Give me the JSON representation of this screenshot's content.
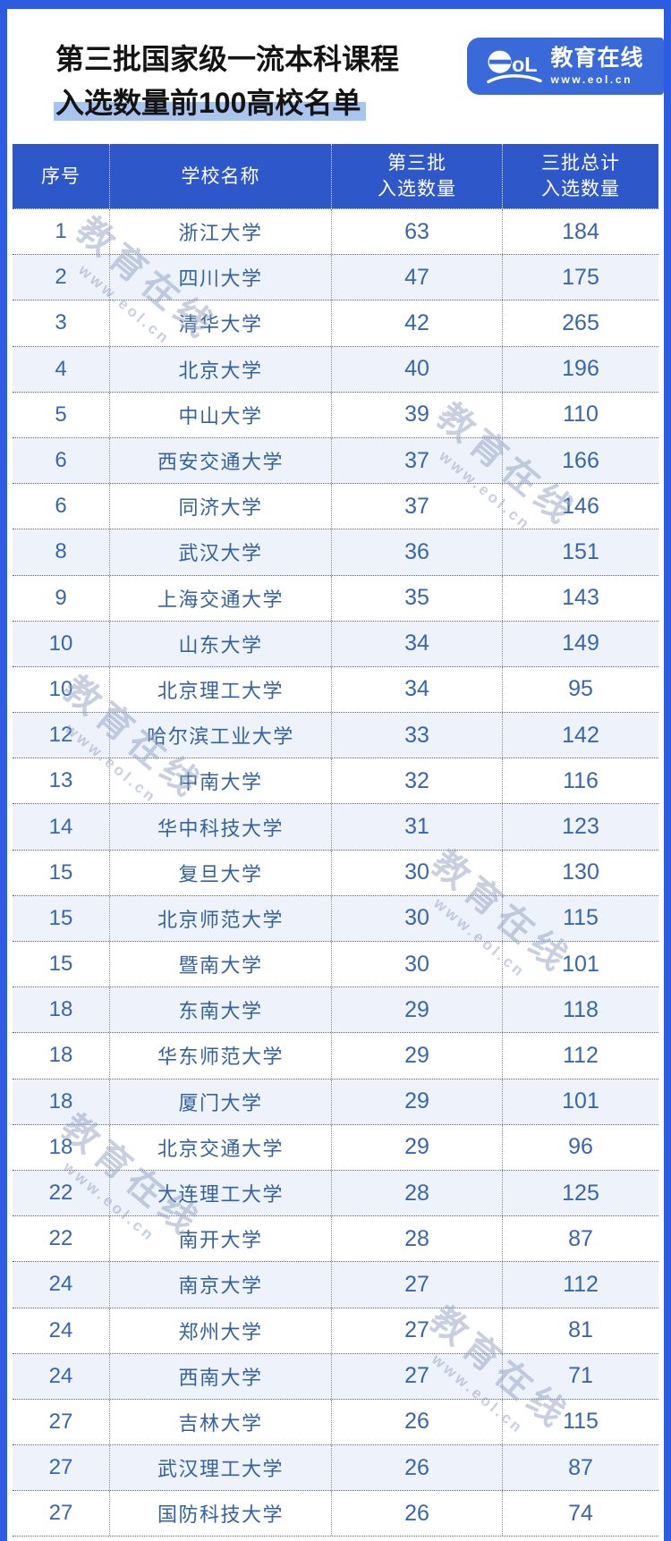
{
  "title": {
    "line1": "第三批国家级一流本科课程",
    "line2": "入选数量前100高校名单"
  },
  "logo": {
    "mark": "ol",
    "brand": "教育在线",
    "url": "www.eol.cn"
  },
  "watermark": {
    "brand": "教育在线",
    "url": "www.eol.cn"
  },
  "colors": {
    "frame_blue": "#2b5ce2",
    "header_blue": "#2e58c9",
    "logo_blue": "#3a69d9",
    "row_alt": "#edf2fb",
    "highlight": "#a9c4ef",
    "data_text_blue": "#3766ad"
  },
  "table": {
    "headers": [
      {
        "line1": "序号",
        "line2": ""
      },
      {
        "line1": "学校名称",
        "line2": ""
      },
      {
        "line1": "第三批",
        "line2": "入选数量"
      },
      {
        "line1": "三批总计",
        "line2": "入选数量"
      }
    ]
  },
  "chart_data": {
    "type": "table",
    "title": "第三批国家级一流本科课程入选数量前100高校名单",
    "columns": [
      "序号",
      "学校名称",
      "第三批入选数量",
      "三批总计入选数量"
    ],
    "rows": [
      [
        "1",
        "浙江大学",
        "63",
        "184"
      ],
      [
        "2",
        "四川大学",
        "47",
        "175"
      ],
      [
        "3",
        "清华大学",
        "42",
        "265"
      ],
      [
        "4",
        "北京大学",
        "40",
        "196"
      ],
      [
        "5",
        "中山大学",
        "39",
        "110"
      ],
      [
        "6",
        "西安交通大学",
        "37",
        "166"
      ],
      [
        "6",
        "同济大学",
        "37",
        "146"
      ],
      [
        "8",
        "武汉大学",
        "36",
        "151"
      ],
      [
        "9",
        "上海交通大学",
        "35",
        "143"
      ],
      [
        "10",
        "山东大学",
        "34",
        "149"
      ],
      [
        "10",
        "北京理工大学",
        "34",
        "95"
      ],
      [
        "12",
        "哈尔滨工业大学",
        "33",
        "142"
      ],
      [
        "13",
        "中南大学",
        "32",
        "116"
      ],
      [
        "14",
        "华中科技大学",
        "31",
        "123"
      ],
      [
        "15",
        "复旦大学",
        "30",
        "130"
      ],
      [
        "15",
        "北京师范大学",
        "30",
        "115"
      ],
      [
        "15",
        "暨南大学",
        "30",
        "101"
      ],
      [
        "18",
        "东南大学",
        "29",
        "118"
      ],
      [
        "18",
        "华东师范大学",
        "29",
        "112"
      ],
      [
        "18",
        "厦门大学",
        "29",
        "101"
      ],
      [
        "18",
        "北京交通大学",
        "29",
        "96"
      ],
      [
        "22",
        "大连理工大学",
        "28",
        "125"
      ],
      [
        "22",
        "南开大学",
        "28",
        "87"
      ],
      [
        "24",
        "南京大学",
        "27",
        "112"
      ],
      [
        "24",
        "郑州大学",
        "27",
        "81"
      ],
      [
        "24",
        "西南大学",
        "27",
        "71"
      ],
      [
        "27",
        "吉林大学",
        "26",
        "115"
      ],
      [
        "27",
        "武汉理工大学",
        "26",
        "87"
      ],
      [
        "27",
        "国防科技大学",
        "26",
        "74"
      ]
    ]
  }
}
